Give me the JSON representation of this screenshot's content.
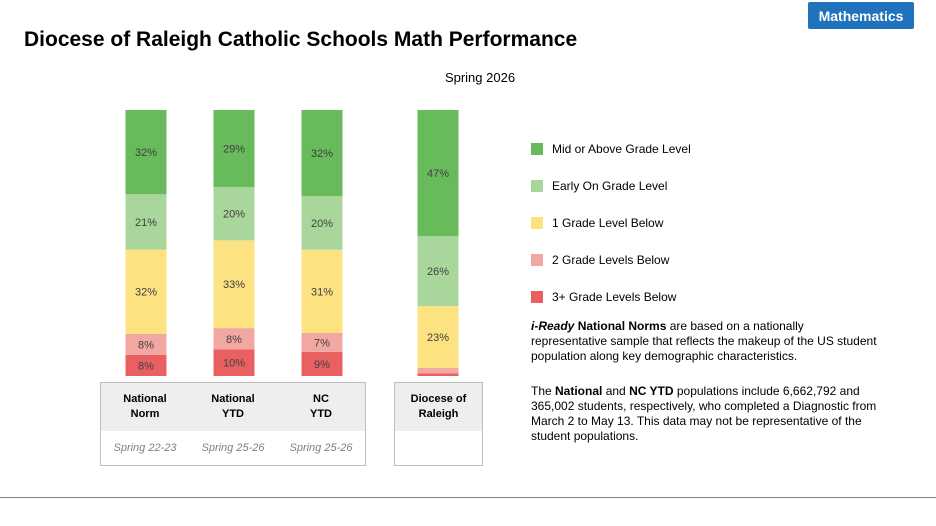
{
  "badge": "Mathematics",
  "title": "Diocese of Raleigh Catholic Schools Math Performance",
  "chart_data": {
    "type": "bar",
    "stacked": true,
    "title": "Spring 2026",
    "ylim": [
      0,
      100
    ],
    "categories": [
      {
        "name": "National\nNorm",
        "period": "Spring 22-23"
      },
      {
        "name": "National\nYTD",
        "period": "Spring 25-26"
      },
      {
        "name": "NC\nYTD",
        "period": "Spring 25-26"
      },
      {
        "name": "Diocese of\nRaleigh",
        "period": ""
      }
    ],
    "series": [
      {
        "name": "3+ Grade Levels Below",
        "color": "#e86060",
        "values": [
          8,
          10,
          9,
          1
        ],
        "labels": [
          "8%",
          "10%",
          "9%",
          ""
        ]
      },
      {
        "name": "2 Grade Levels Below",
        "color": "#f2a7a2",
        "values": [
          8,
          8,
          7,
          2
        ],
        "labels": [
          "8%",
          "8%",
          "7%",
          ""
        ]
      },
      {
        "name": "1 Grade Level Below",
        "color": "#fce280",
        "values": [
          32,
          33,
          31,
          23
        ],
        "labels": [
          "32%",
          "33%",
          "31%",
          "23%"
        ]
      },
      {
        "name": "Early On Grade Level",
        "color": "#a9d79b",
        "values": [
          21,
          20,
          20,
          26
        ],
        "labels": [
          "21%",
          "20%",
          "20%",
          "26%"
        ]
      },
      {
        "name": "Mid or Above Grade Level",
        "color": "#67bb5a",
        "values": [
          32,
          29,
          32,
          47
        ],
        "labels": [
          "32%",
          "29%",
          "32%",
          "47%"
        ]
      }
    ],
    "legend": [
      "Mid or Above Grade Level",
      "Early On Grade Level",
      "1 Grade Level Below",
      "2 Grade Levels Below",
      "3+ Grade Levels Below"
    ],
    "legend_position": "right"
  },
  "notes": {
    "p1_italic": "i-Ready",
    "p1_bold": " National Norms",
    "p1_rest": " are based on a nationally representative sample that reflects the makeup of the US student population along key demographic characteristics.",
    "p2_a": "The ",
    "p2_b": "National",
    "p2_c": " and ",
    "p2_d": "NC YTD",
    "p2_e": " populations include 6,662,792 and 365,002 students, respectively, who completed a Diagnostic from March 2 to May 13. This data may not be representative of the student populations."
  }
}
